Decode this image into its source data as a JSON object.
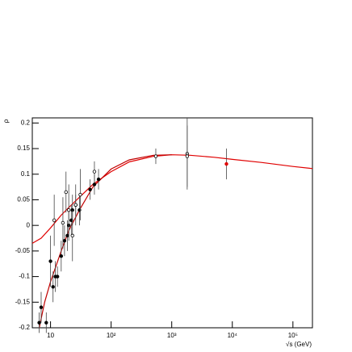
{
  "chart_data": {
    "type": "scatter",
    "x_label": "√s (GeV)",
    "y_label": "ρ",
    "log_x": true,
    "xlim": [
      5,
      210000
    ],
    "ylim": [
      -0.2,
      0.21
    ],
    "xticks": [
      10,
      {
        "value": 100,
        "label": "10²"
      },
      {
        "value": 1000,
        "label": "10³"
      },
      {
        "value": 10000,
        "label": "10⁴"
      },
      {
        "value": 100000,
        "label": "10⁵"
      }
    ],
    "yticks": [
      -0.2,
      -0.15,
      -0.1,
      -0.05,
      0,
      0.05,
      0.1,
      0.15,
      0.2
    ],
    "series": [
      {
        "kind": "curve",
        "color": "#e00000",
        "x": [
          5,
          7,
          10,
          15,
          20,
          30,
          50,
          100,
          200,
          500,
          1000,
          2000,
          5000,
          10000,
          30000,
          100000,
          210000
        ],
        "values": [
          -0.035,
          -0.025,
          -0.005,
          0.02,
          0.035,
          0.055,
          0.08,
          0.105,
          0.124,
          0.135,
          0.138,
          0.137,
          0.133,
          0.129,
          0.123,
          0.115,
          0.111
        ]
      },
      {
        "kind": "curve",
        "color": "#c00000",
        "x": [
          6.5,
          8,
          10,
          15,
          20,
          30,
          50,
          100,
          200,
          500,
          1000
        ],
        "values": [
          -0.2,
          -0.15,
          -0.11,
          -0.05,
          -0.01,
          0.03,
          0.075,
          0.11,
          0.128,
          0.137,
          0.138
        ]
      },
      {
        "kind": "points",
        "marker": "filled",
        "color": "#000000",
        "x": [
          6.5,
          7,
          8.5,
          10,
          11,
          12,
          13,
          15,
          17,
          19,
          20,
          22,
          23,
          26,
          30,
          45,
          53,
          62
        ],
        "values": [
          -0.19,
          -0.16,
          -0.19,
          -0.07,
          -0.12,
          -0.1,
          -0.1,
          -0.06,
          -0.03,
          -0.02,
          0,
          0.01,
          0.03,
          0.04,
          0.03,
          0.07,
          0.08,
          0.09
        ],
        "errors": [
          0.02,
          0.03,
          0.02,
          0.05,
          0.03,
          0.03,
          0.02,
          0.03,
          0.03,
          0.03,
          0.03,
          0.03,
          0.03,
          0.02,
          0.03,
          0.02,
          0.02,
          0.02
        ]
      },
      {
        "kind": "points",
        "marker": "open",
        "color": "#000000",
        "x": [
          11.5,
          16,
          18,
          20,
          23,
          26,
          31,
          53,
          546,
          1800,
          1800
        ],
        "values": [
          0.01,
          0.005,
          0.065,
          0.03,
          -0.02,
          0.04,
          0.06,
          0.105,
          0.135,
          0.14,
          0.135
        ],
        "errors": [
          0.05,
          0.05,
          0.04,
          0.05,
          0.05,
          0.04,
          0.05,
          0.02,
          0.015,
          0.07,
          0.06
        ]
      },
      {
        "kind": "points",
        "marker": "filled",
        "color": "#e00000",
        "x": [
          8000
        ],
        "values": [
          0.12
        ],
        "errors": [
          0.03
        ]
      }
    ]
  }
}
